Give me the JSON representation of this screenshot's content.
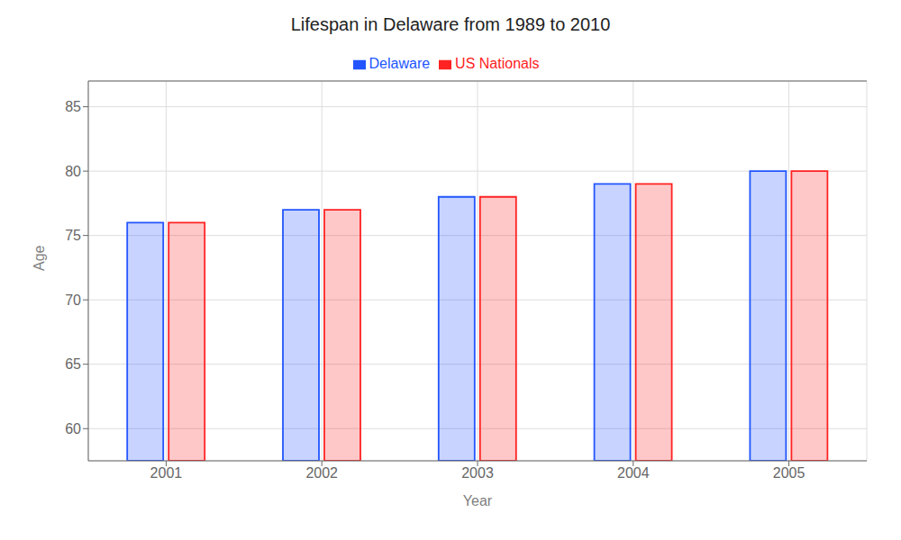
{
  "chart_data": {
    "type": "bar",
    "title": "Lifespan in Delaware from 1989 to 2010",
    "xlabel": "Year",
    "ylabel": "Age",
    "categories": [
      "2001",
      "2002",
      "2003",
      "2004",
      "2005"
    ],
    "series": [
      {
        "name": "Delaware",
        "color": "#2255ff",
        "values": [
          76,
          77,
          78,
          79,
          80
        ]
      },
      {
        "name": "US Nationals",
        "color": "#ff2222",
        "values": [
          76,
          77,
          78,
          79,
          80
        ]
      }
    ],
    "ylim": [
      57.5,
      87
    ],
    "yticks": [
      60,
      65,
      70,
      75,
      80,
      85
    ],
    "grid": true,
    "legend": "top"
  }
}
